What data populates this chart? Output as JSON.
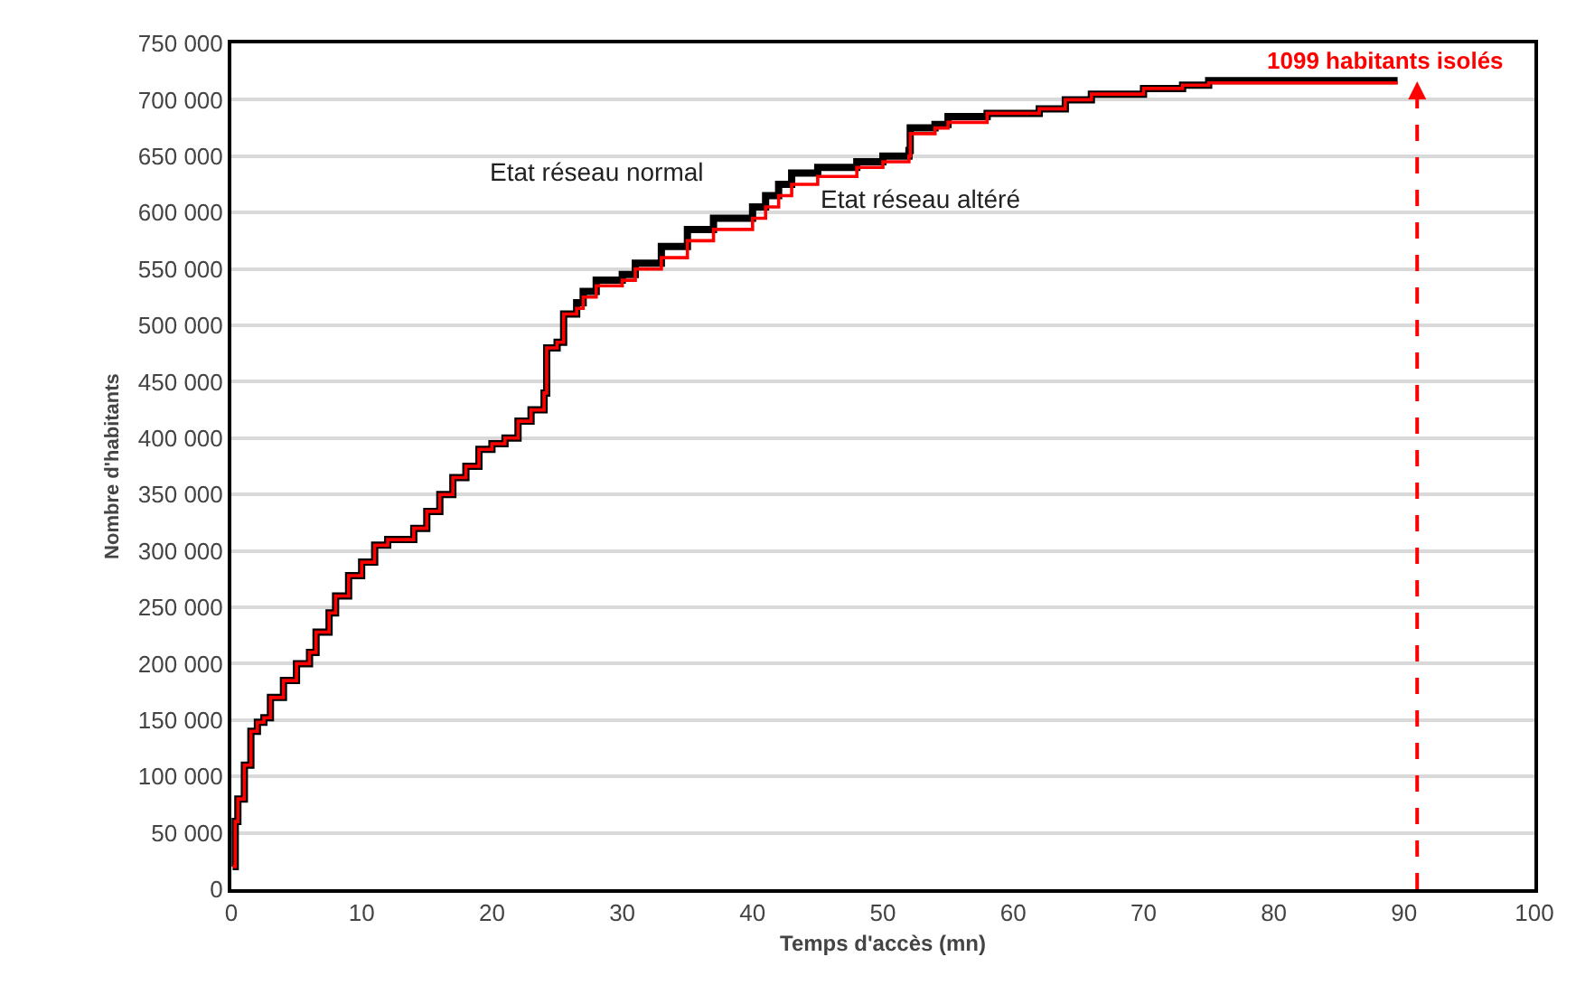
{
  "chart_data": {
    "type": "step",
    "xlabel": "Temps d'accès (mn)",
    "ylabel": "Nombre d'habitants",
    "x": [
      0.1,
      0.3,
      0.5,
      1,
      1.5,
      2,
      2.5,
      3,
      4,
      5,
      6,
      6.5,
      7.5,
      8,
      9,
      10,
      11,
      12,
      14,
      15,
      16,
      17,
      18,
      19,
      20,
      21,
      22,
      23,
      24,
      24.2,
      25,
      25.5,
      26.5,
      27,
      28,
      30,
      31,
      33,
      35,
      37,
      40,
      41,
      42,
      43,
      45,
      48,
      50,
      52,
      52.1,
      54,
      55,
      58,
      62,
      64,
      66,
      70,
      73,
      75,
      89.5
    ],
    "series": [
      {
        "name": "Etat réseau altéré",
        "color": "#ff0000",
        "values": [
          20000,
          60000,
          80000,
          110000,
          140000,
          148000,
          152000,
          170000,
          185000,
          200000,
          210000,
          228000,
          245000,
          260000,
          278000,
          290000,
          305000,
          310000,
          320000,
          335000,
          350000,
          365000,
          375000,
          390000,
          395000,
          400000,
          415000,
          425000,
          440000,
          480000,
          485000,
          510000,
          515000,
          525000,
          535000,
          540000,
          550000,
          560000,
          575000,
          585000,
          595000,
          605000,
          615000,
          625000,
          632000,
          640000,
          645000,
          650000,
          670000,
          675000,
          680000,
          688000,
          692000,
          700000,
          705000,
          710000,
          713000,
          715000,
          715000
        ]
      },
      {
        "name": "Etat réseau normal",
        "color": "#000000",
        "values": [
          20000,
          60000,
          80000,
          110000,
          140000,
          148000,
          152000,
          170000,
          185000,
          200000,
          210000,
          228000,
          245000,
          260000,
          278000,
          290000,
          305000,
          310000,
          320000,
          335000,
          350000,
          365000,
          375000,
          390000,
          395000,
          400000,
          415000,
          425000,
          440000,
          480000,
          485000,
          510000,
          520000,
          530000,
          540000,
          545000,
          555000,
          570000,
          585000,
          595000,
          605000,
          615000,
          625000,
          635000,
          640000,
          645000,
          650000,
          655000,
          675000,
          678000,
          685000,
          688000,
          692000,
          700000,
          705000,
          710000,
          713000,
          717000,
          717000
        ]
      }
    ],
    "xlim": [
      0,
      100
    ],
    "xticks": [
      0,
      10,
      20,
      30,
      40,
      50,
      60,
      70,
      80,
      90,
      100
    ],
    "ylim": [
      0,
      750000
    ],
    "yticks": [
      0,
      {
        "value": 50000,
        "label": "50 000"
      },
      {
        "value": 100000,
        "label": "100 000"
      },
      {
        "value": 150000,
        "label": "150 000"
      },
      {
        "value": 200000,
        "label": "200 000"
      },
      {
        "value": 250000,
        "label": "250 000"
      },
      {
        "value": 300000,
        "label": "300 000"
      },
      {
        "value": 350000,
        "label": "350 000"
      },
      {
        "value": 400000,
        "label": "400 000"
      },
      {
        "value": 450000,
        "label": "450 000"
      },
      {
        "value": 500000,
        "label": "500 000"
      },
      {
        "value": 550000,
        "label": "550 000"
      },
      {
        "value": 600000,
        "label": "600 000"
      },
      {
        "value": 650000,
        "label": "650 000"
      },
      {
        "value": 700000,
        "label": "700 000"
      },
      {
        "value": 750000,
        "label": "750 000"
      }
    ],
    "grid": "y",
    "legend": false,
    "marker": "none",
    "line_style": "solid",
    "ref_lines": [
      {
        "axis": "x",
        "value": 91,
        "label": "1099 habitants isolés",
        "color": "#ff0000",
        "line_style": "dashed"
      }
    ]
  }
}
